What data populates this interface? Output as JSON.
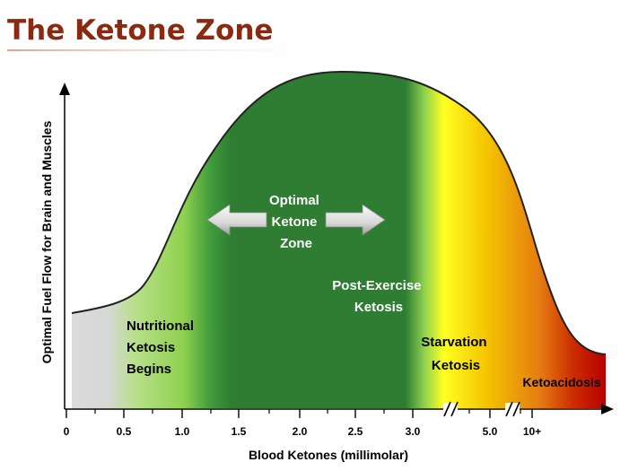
{
  "chart_data": {
    "type": "area",
    "title": "The Ketone Zone",
    "xlabel": "Blood Ketones (millimolar)",
    "ylabel": "Optimal Fuel Flow for Brain and Muscles",
    "x_tick_labels": [
      "0",
      "0.5",
      "1.0",
      "1.5",
      "2.0",
      "2.5",
      "3.0",
      "5.0",
      "10+"
    ],
    "axis_breaks": [
      "between 3.0 and 5.0",
      "between 5.0 and 10+"
    ],
    "zones": [
      {
        "label": "Nutritional Ketosis Begins",
        "lines": [
          "Nutritional",
          "Ketosis",
          "Begins"
        ],
        "color": "#8fd14f"
      },
      {
        "label": "Optimal Ketone Zone",
        "lines": [
          "Optimal",
          "Ketone",
          "Zone"
        ],
        "color": "#2e7d32"
      },
      {
        "label": "Post-Exercise Ketosis",
        "lines": [
          "Post-Exercise",
          "Ketosis"
        ],
        "color": "#2e7d32"
      },
      {
        "label": "Starvation Ketosis",
        "lines": [
          "Starvation",
          "Ketosis"
        ],
        "color": "#f5c400"
      },
      {
        "label": "Ketoacidosis",
        "lines": [
          "Ketoacidosis"
        ],
        "color": "#c40000"
      }
    ],
    "curve_shape": "low plateau near 0, rises steeply around 1.0 to 1.5, peaks around 2.5 to 3.0, falls steeply past 5.0, low plateau at 10+",
    "grid": false,
    "legend": "none"
  },
  "colors": {
    "title": "#8b2a12",
    "title_underline": "#e0a58a",
    "axis": "#000000",
    "label_dark": "#ffffff",
    "label_light": "#000000"
  }
}
